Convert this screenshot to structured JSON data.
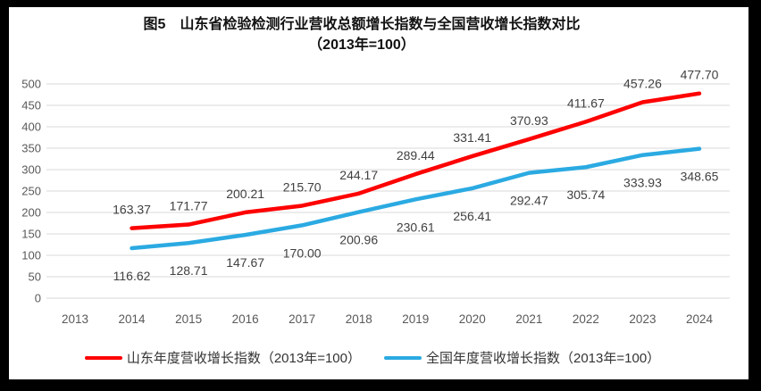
{
  "chart_data": {
    "type": "line",
    "title": "图5　山东省检验检测行业营收总额增长指数与全国营收增长指数对比",
    "subtitle": "（2013年=100）",
    "categories": [
      "2013",
      "2014",
      "2015",
      "2016",
      "2017",
      "2018",
      "2019",
      "2020",
      "2021",
      "2022",
      "2023",
      "2024"
    ],
    "yticks": [
      0,
      50,
      100,
      150,
      200,
      250,
      300,
      350,
      400,
      450,
      500
    ],
    "ylim": [
      0,
      500
    ],
    "grid": true,
    "legend_position": "bottom",
    "data_labels": true,
    "colors": {
      "grid": "#D9D9D9",
      "axis_text": "#595959",
      "data_label_text": "#404040",
      "background": "#FFFFFF",
      "frame": "#000000"
    },
    "series": [
      {
        "name": "山东年度营收增长指数（2013年=100）",
        "color": "#FE0000",
        "x": [
          "2014",
          "2015",
          "2016",
          "2017",
          "2018",
          "2019",
          "2020",
          "2021",
          "2022",
          "2023",
          "2024"
        ],
        "values": [
          163.37,
          171.77,
          200.21,
          215.7,
          244.17,
          289.44,
          331.41,
          370.93,
          411.67,
          457.26,
          477.7
        ]
      },
      {
        "name": "全国年度营收增长指数（2013年=100）",
        "color": "#2BAAE2",
        "x": [
          "2014",
          "2015",
          "2016",
          "2017",
          "2018",
          "2019",
          "2020",
          "2021",
          "2022",
          "2023",
          "2024"
        ],
        "values": [
          116.62,
          128.71,
          147.67,
          170.0,
          200.96,
          230.61,
          256.41,
          292.47,
          305.74,
          333.93,
          348.65
        ]
      }
    ]
  }
}
